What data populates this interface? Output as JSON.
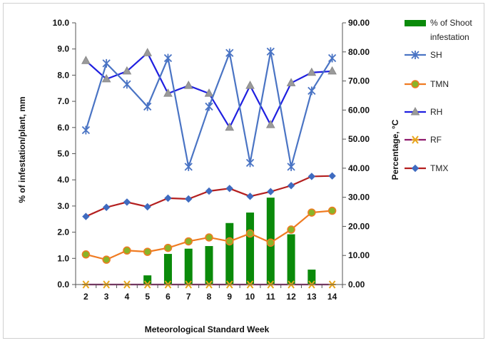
{
  "chart_data": {
    "type": "bar",
    "xlabel": "Meteorological Standard Week",
    "ylabel_left": "% of infestation/plant, mm",
    "ylabel_right": "Percentage, °C",
    "x": [
      2,
      3,
      4,
      5,
      6,
      7,
      8,
      9,
      10,
      11,
      12,
      13,
      14
    ],
    "ylim_left": [
      0,
      10
    ],
    "ylim_right": [
      0,
      90
    ],
    "yticks_left": [
      "0.0",
      "1.0",
      "2.0",
      "3.0",
      "4.0",
      "5.0",
      "6.0",
      "7.0",
      "8.0",
      "9.0",
      "10.0"
    ],
    "yticks_right": [
      "0.00",
      "10.00",
      "20.00",
      "30.00",
      "40.00",
      "50.00",
      "60.00",
      "70.00",
      "80.00",
      "90.00"
    ],
    "legend_position": "right",
    "series": [
      {
        "name": "% of Shoot infestation",
        "type": "bar",
        "axis": "left",
        "color": "#0a8a0a",
        "values": [
          0,
          0,
          0,
          0.35,
          1.17,
          1.37,
          1.47,
          2.35,
          2.75,
          3.32,
          1.92,
          0.57,
          0
        ]
      },
      {
        "name": "SH",
        "type": "line",
        "axis": "left",
        "color": "#4a74c4",
        "marker": "star",
        "values": [
          5.9,
          8.45,
          7.65,
          6.8,
          8.65,
          4.5,
          6.8,
          8.85,
          4.65,
          8.9,
          4.5,
          7.4,
          8.65
        ]
      },
      {
        "name": "TMN",
        "type": "line",
        "axis": "left",
        "color": "#f07b22",
        "marker": "circle",
        "values": [
          1.15,
          0.95,
          1.3,
          1.25,
          1.4,
          1.65,
          1.8,
          1.65,
          1.95,
          1.6,
          2.1,
          2.75,
          2.82
        ]
      },
      {
        "name": "RH",
        "type": "line",
        "axis": "left",
        "color": "#1f1fe0",
        "marker": "triangle",
        "values": [
          8.55,
          7.85,
          8.15,
          8.85,
          7.3,
          7.6,
          7.3,
          6.0,
          7.6,
          6.1,
          7.7,
          8.1,
          8.15
        ]
      },
      {
        "name": "RF",
        "type": "line",
        "axis": "left",
        "color": "#8e1a6d",
        "marker": "x",
        "values": [
          0,
          0,
          0,
          0,
          0,
          0,
          0,
          0,
          0,
          0,
          0,
          0,
          0
        ]
      },
      {
        "name": "TMX",
        "type": "line",
        "axis": "left",
        "color": "#b41f1f",
        "marker": "diamond",
        "values": [
          2.6,
          2.95,
          3.15,
          2.97,
          3.3,
          3.27,
          3.57,
          3.67,
          3.37,
          3.55,
          3.78,
          4.13,
          4.15
        ]
      }
    ]
  }
}
